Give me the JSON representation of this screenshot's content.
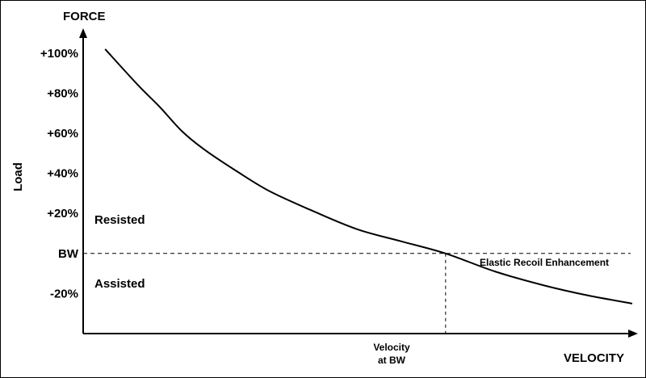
{
  "chart_data": {
    "type": "line",
    "xlabel": "VELOCITY",
    "ylabel": "FORCE",
    "side_label": "Load",
    "y_ticks": [
      "+100%",
      "+80%",
      "+60%",
      "+40%",
      "+20%",
      "BW",
      "-20%"
    ],
    "ylim": [
      -40,
      110
    ],
    "xlim": [
      0,
      100
    ],
    "series": [
      {
        "x": [
          4,
          10,
          14,
          18,
          22,
          28,
          34,
          42,
          50,
          58,
          66,
          75,
          84,
          92,
          100
        ],
        "y": [
          102,
          84,
          73,
          61,
          52,
          41,
          31,
          21,
          12,
          6,
          0,
          -9,
          -16,
          -21,
          -25
        ]
      }
    ],
    "reference_lines": {
      "bw_load": 0,
      "velocity_at_bw": 66
    },
    "region_labels": {
      "upper": "Resisted",
      "lower": "Assisted"
    },
    "annotations": {
      "elastic": "Elastic Recoil Enhancement",
      "velocity_at_bw_line1": "Velocity",
      "velocity_at_bw_line2": "at BW"
    },
    "grid": false,
    "legend": "none",
    "colors": {
      "line": "#000000",
      "background": "#ffffff"
    }
  }
}
